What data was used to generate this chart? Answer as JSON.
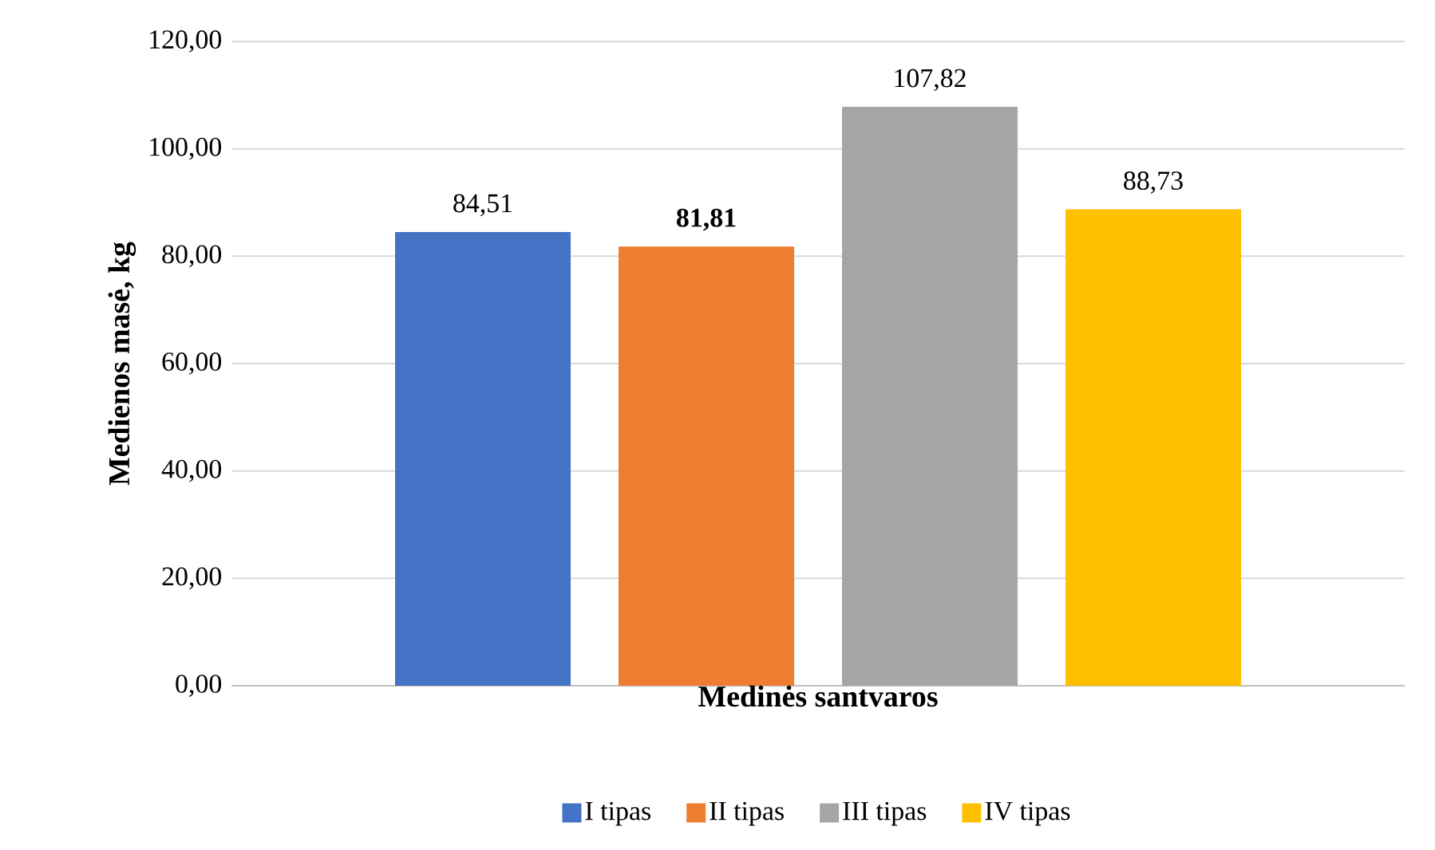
{
  "chart_data": {
    "type": "bar",
    "xlabel": "Medinės santvaros",
    "ylabel": "Medienos masė, kg",
    "categories": [
      null
    ],
    "series": [
      {
        "name": "I tipas",
        "color": "#4472c4",
        "values": [
          84.51
        ],
        "value_labels": [
          "84,51"
        ]
      },
      {
        "name": "II tipas",
        "color": "#ed7d31",
        "values": [
          81.81
        ],
        "value_labels": [
          "**81,81**"
        ]
      },
      {
        "name": "III tipas",
        "color": "#a5a5a5",
        "values": [
          107.82
        ],
        "value_labels": [
          "107,82"
        ]
      },
      {
        "name": "IV tipas",
        "color": "#ffc000",
        "values": [
          88.73
        ],
        "value_labels": [
          "88,73"
        ]
      }
    ],
    "ylim": [
      0,
      120
    ],
    "yticks": [
      {
        "value": 0,
        "label": "0,00"
      },
      {
        "value": 20,
        "label": "20,00"
      },
      {
        "value": 40,
        "label": "40,00"
      },
      {
        "value": 60,
        "label": "60,00"
      },
      {
        "value": 80,
        "label": "80,00"
      },
      {
        "value": 100,
        "label": "100,00"
      },
      {
        "value": 120,
        "label": "120,00"
      }
    ],
    "grid": "y",
    "legend": "bottom"
  }
}
